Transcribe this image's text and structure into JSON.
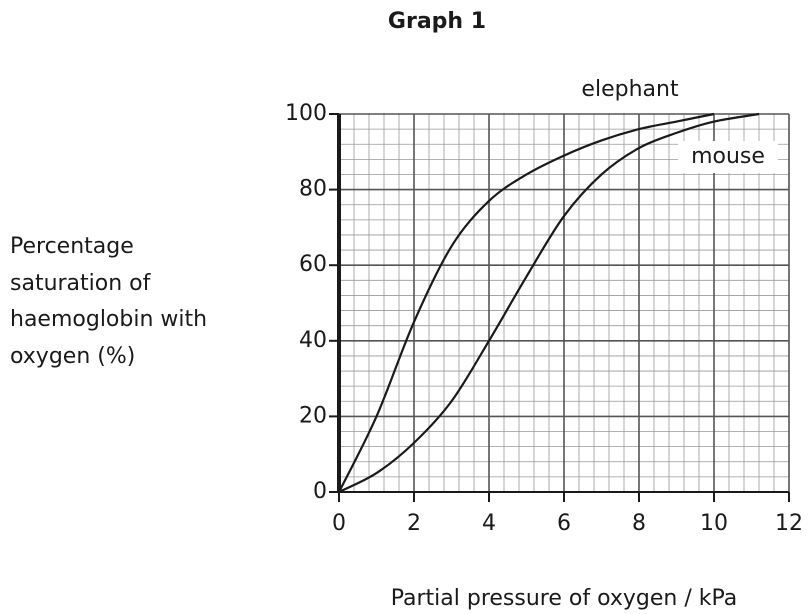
{
  "chart_data": {
    "type": "line",
    "title": "Graph 1",
    "xlabel": "Partial pressure of oxygen / kPa",
    "ylabel": [
      "Percentage",
      "saturation of",
      "haemoglobin with",
      "oxygen (%)"
    ],
    "xlim": [
      0,
      12
    ],
    "ylim": [
      0,
      100
    ],
    "xticks": [
      0,
      2,
      4,
      6,
      8,
      10,
      12
    ],
    "yticks": [
      0,
      20,
      40,
      60,
      80,
      100
    ],
    "grid": true,
    "series": [
      {
        "name": "elephant",
        "color": "#1a1a1a",
        "x": [
          0,
          1,
          2,
          3,
          4,
          5,
          6,
          7,
          8,
          9,
          10
        ],
        "values": [
          0,
          20,
          45,
          65,
          77,
          84,
          89,
          93,
          96,
          98,
          100
        ]
      },
      {
        "name": "mouse",
        "color": "#1a1a1a",
        "x": [
          0,
          1,
          2,
          3,
          4,
          5,
          6,
          7,
          8,
          9,
          10,
          11.2
        ],
        "values": [
          0,
          5,
          13,
          24,
          40,
          57,
          73,
          84,
          91,
          95,
          98,
          100
        ]
      }
    ]
  }
}
